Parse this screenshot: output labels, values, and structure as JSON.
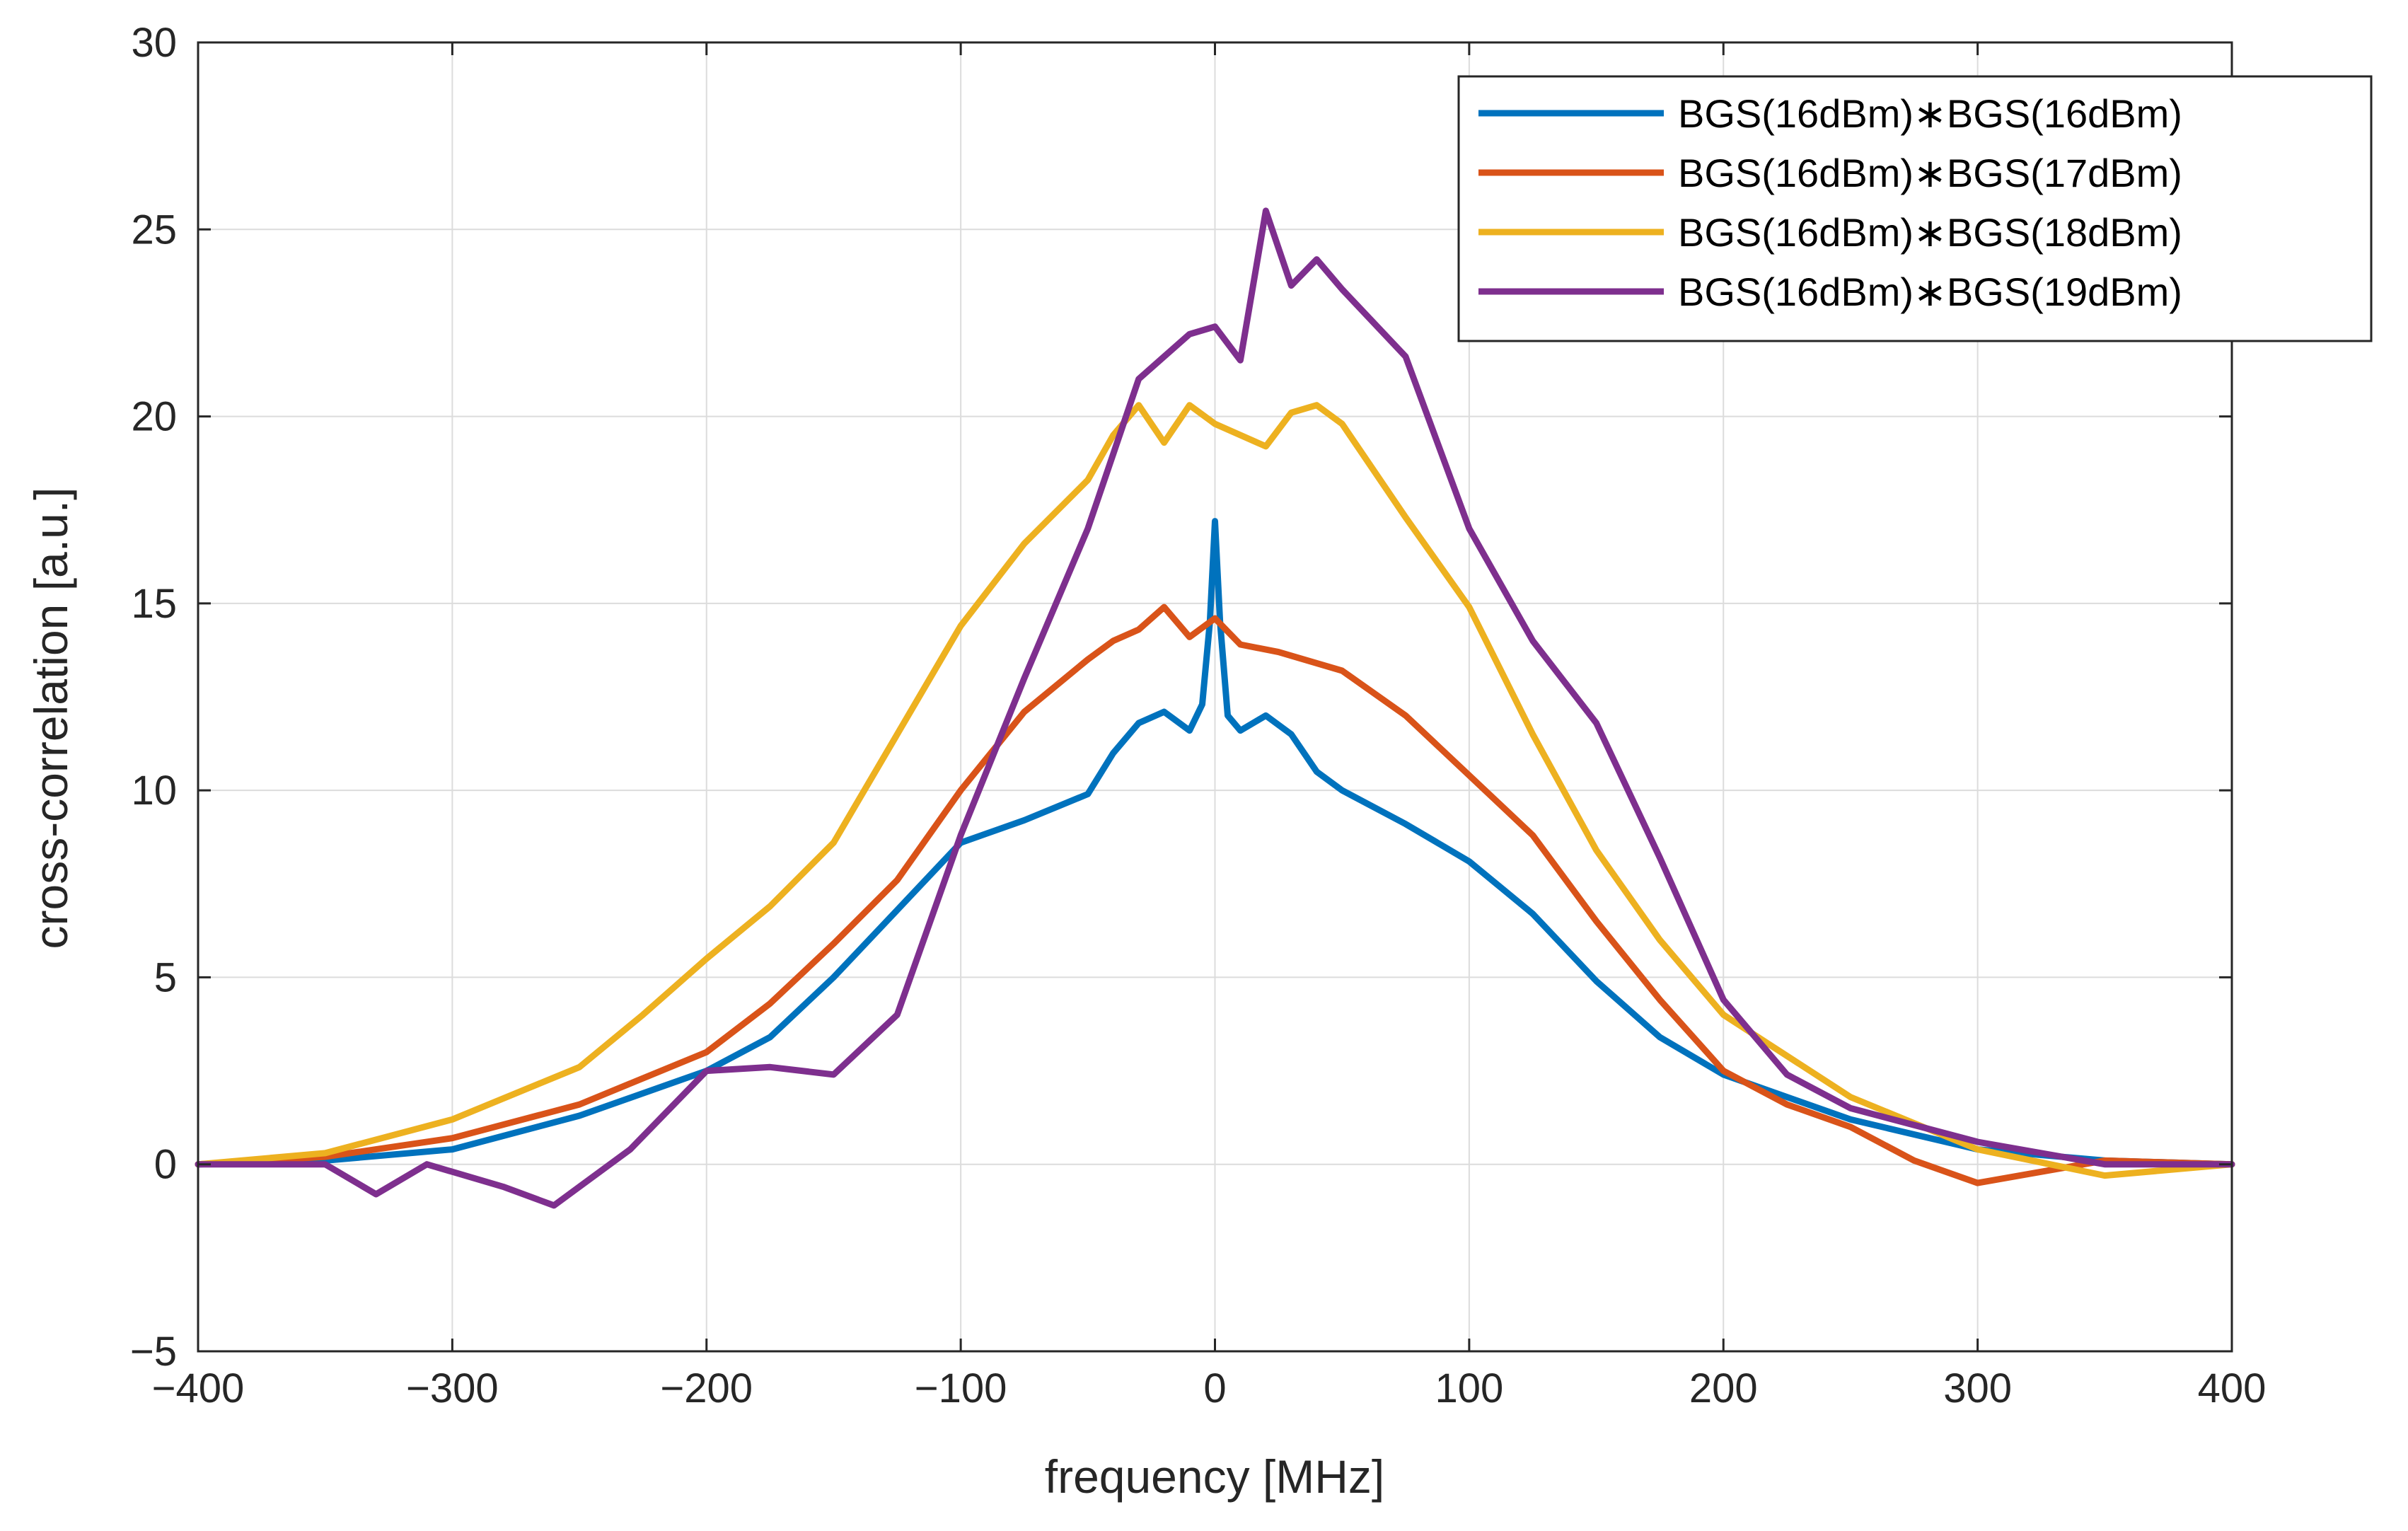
{
  "chart_data": {
    "type": "line",
    "title": "",
    "xlabel": "frequency  [MHz]",
    "ylabel": "cross-correlation  [a.u.]",
    "xlim": [
      -400,
      400
    ],
    "ylim": [
      -5,
      30
    ],
    "xticks": [
      -400,
      -300,
      -200,
      -100,
      0,
      100,
      200,
      300,
      400
    ],
    "yticks": [
      -5,
      0,
      5,
      10,
      15,
      20,
      25,
      30
    ],
    "xtick_labels": [
      "−400",
      "−300",
      "−200",
      "−100",
      "0",
      "100",
      "200",
      "300",
      "400"
    ],
    "ytick_labels": [
      "−5",
      "0",
      "5",
      "10",
      "15",
      "20",
      "25",
      "30"
    ],
    "grid": true,
    "legend_position": "top-right",
    "series": [
      {
        "name": "BGS(16dBm)∗BGS(16dBm)",
        "color": "#0072BD",
        "x": [
          -400,
          -350,
          -300,
          -250,
          -200,
          -175,
          -150,
          -125,
          -100,
          -75,
          -50,
          -40,
          -30,
          -20,
          -10,
          -5,
          -2,
          0,
          2,
          5,
          10,
          20,
          30,
          40,
          50,
          75,
          100,
          125,
          150,
          175,
          200,
          250,
          300,
          350,
          400
        ],
        "y": [
          0,
          0.1,
          0.4,
          1.3,
          2.5,
          3.4,
          5.0,
          6.8,
          8.6,
          9.2,
          9.9,
          11.0,
          11.8,
          12.1,
          11.6,
          12.3,
          14.5,
          17.2,
          14.5,
          12.0,
          11.6,
          12.0,
          11.5,
          10.5,
          10.0,
          9.1,
          8.1,
          6.7,
          4.9,
          3.4,
          2.4,
          1.2,
          0.4,
          0.1,
          0
        ]
      },
      {
        "name": "BGS(16dBm)∗BGS(17dBm)",
        "color": "#D95319",
        "x": [
          -400,
          -350,
          -300,
          -250,
          -200,
          -175,
          -150,
          -125,
          -100,
          -75,
          -50,
          -40,
          -30,
          -20,
          -10,
          0,
          10,
          25,
          50,
          75,
          100,
          125,
          150,
          175,
          200,
          225,
          250,
          275,
          300,
          350,
          400
        ],
        "y": [
          0,
          0.2,
          0.7,
          1.6,
          3.0,
          4.3,
          5.9,
          7.6,
          10.0,
          12.1,
          13.5,
          14.0,
          14.3,
          14.9,
          14.1,
          14.6,
          13.9,
          13.7,
          13.2,
          12.0,
          10.4,
          8.8,
          6.5,
          4.4,
          2.5,
          1.6,
          1.0,
          0.1,
          -0.5,
          0.1,
          0
        ]
      },
      {
        "name": "BGS(16dBm)∗BGS(18dBm)",
        "color": "#EDB120",
        "x": [
          -400,
          -350,
          -300,
          -250,
          -225,
          -200,
          -175,
          -150,
          -125,
          -100,
          -75,
          -50,
          -40,
          -30,
          -20,
          -10,
          0,
          10,
          20,
          30,
          40,
          50,
          75,
          100,
          125,
          150,
          175,
          200,
          250,
          300,
          350,
          400
        ],
        "y": [
          0,
          0.3,
          1.2,
          2.6,
          4.0,
          5.5,
          6.9,
          8.6,
          11.5,
          14.4,
          16.6,
          18.3,
          19.5,
          20.3,
          19.3,
          20.3,
          19.8,
          19.5,
          19.2,
          20.1,
          20.3,
          19.8,
          17.3,
          14.9,
          11.5,
          8.4,
          6.0,
          4.0,
          1.8,
          0.4,
          -0.3,
          0
        ]
      },
      {
        "name": "BGS(16dBm)∗BGS(19dBm)",
        "color": "#7E2F8E",
        "x": [
          -400,
          -350,
          -330,
          -310,
          -280,
          -260,
          -250,
          -230,
          -200,
          -175,
          -150,
          -125,
          -100,
          -75,
          -50,
          -40,
          -30,
          -20,
          -10,
          0,
          10,
          20,
          30,
          40,
          50,
          75,
          100,
          125,
          150,
          175,
          200,
          225,
          250,
          300,
          350,
          400
        ],
        "y": [
          0,
          0,
          -0.8,
          0,
          -0.6,
          -1.1,
          -0.6,
          0.4,
          2.5,
          2.6,
          2.4,
          4.0,
          8.8,
          13.0,
          17.0,
          19.0,
          21.0,
          21.6,
          22.2,
          22.4,
          21.5,
          25.5,
          23.5,
          24.2,
          23.4,
          21.6,
          17.0,
          14.0,
          11.8,
          8.2,
          4.4,
          2.4,
          1.5,
          0.6,
          0,
          0
        ]
      }
    ]
  }
}
